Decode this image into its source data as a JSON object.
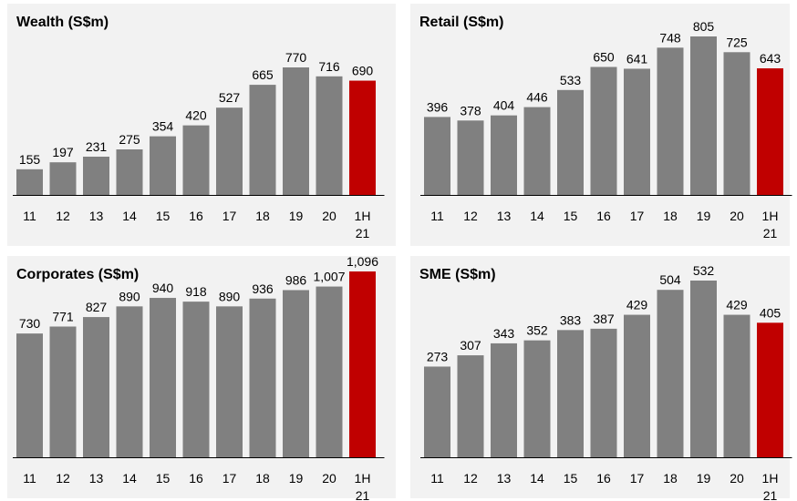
{
  "chart_data": [
    {
      "type": "bar",
      "title": "Wealth (S$m)",
      "categories": [
        "11",
        "12",
        "13",
        "14",
        "15",
        "16",
        "17",
        "18",
        "19",
        "20",
        "1H 21"
      ],
      "values": [
        155,
        197,
        231,
        275,
        354,
        420,
        527,
        665,
        770,
        716,
        690
      ],
      "value_labels": [
        "155",
        "197",
        "231",
        "275",
        "354",
        "420",
        "527",
        "665",
        "770",
        "716",
        "690"
      ],
      "ylim": [
        0,
        850
      ]
    },
    {
      "type": "bar",
      "title": "Retail (S$m)",
      "categories": [
        "11",
        "12",
        "13",
        "14",
        "15",
        "16",
        "17",
        "18",
        "19",
        "20",
        "1H 21"
      ],
      "values": [
        396,
        378,
        404,
        446,
        533,
        650,
        641,
        748,
        805,
        725,
        643
      ],
      "value_labels": [
        "396",
        "378",
        "404",
        "446",
        "533",
        "650",
        "641",
        "748",
        "805",
        "725",
        "643"
      ],
      "ylim": [
        0,
        850
      ]
    },
    {
      "type": "bar",
      "title": "Corporates (S$m)",
      "categories": [
        "11",
        "12",
        "13",
        "14",
        "15",
        "16",
        "17",
        "18",
        "19",
        "20",
        "1H 21"
      ],
      "values": [
        730,
        771,
        827,
        890,
        940,
        918,
        890,
        936,
        986,
        1007,
        1096
      ],
      "value_labels": [
        "730",
        "771",
        "827",
        "890",
        "940",
        "918",
        "890",
        "936",
        "986",
        "1,007",
        "1,096"
      ],
      "ylim": [
        0,
        1200
      ]
    },
    {
      "type": "bar",
      "title": "SME (S$m)",
      "categories": [
        "11",
        "12",
        "13",
        "14",
        "15",
        "16",
        "17",
        "18",
        "19",
        "20",
        "1H 21"
      ],
      "values": [
        273,
        307,
        343,
        352,
        383,
        387,
        429,
        504,
        532,
        429,
        405
      ],
      "value_labels": [
        "273",
        "307",
        "343",
        "352",
        "383",
        "387",
        "429",
        "504",
        "532",
        "429",
        "405"
      ],
      "ylim": [
        0,
        600
      ]
    }
  ],
  "colors": {
    "bar": "#808080",
    "highlight": "#c00000",
    "axis": "#000000",
    "panel": "#f2f2f2"
  }
}
